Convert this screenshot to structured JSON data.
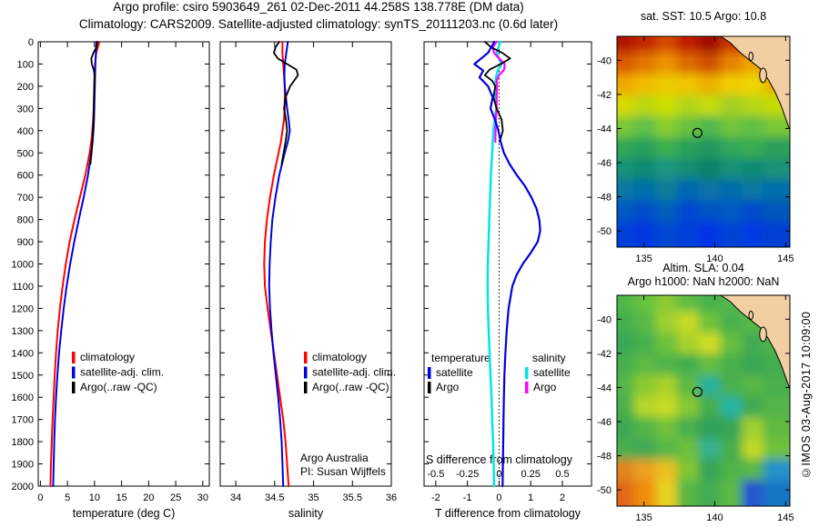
{
  "header": {
    "line1": "Argo profile: csiro 5903649_261 02-Dec-2011 44.258S 138.778E (DM data)",
    "line2": "Climatology: CARS2009. Satellite-adjusted climatology: synTS_20111203.nc (0.6d later)"
  },
  "watermark": "©IMOS 03-Aug-2017 10:09:00",
  "colors": {
    "climatology": "#ff0000",
    "satellite_adjusted": "#0000dd",
    "argo": "#000000",
    "salinity_satellite": "#00e5e5",
    "salinity_argo": "#ff00ff",
    "land": "#f2cfa2",
    "axis": "#000000"
  },
  "chart_data": [
    {
      "id": "temperature-profile",
      "type": "line",
      "xlabel": "temperature (deg C)",
      "xlim": [
        -0.4,
        31.2
      ],
      "xticks": [
        0,
        5,
        10,
        15,
        20,
        25,
        30
      ],
      "ylim": [
        0,
        2000
      ],
      "ytick_step": 100,
      "legend": [
        {
          "label": "climatology",
          "color": "#ff0000"
        },
        {
          "label": "satellite-adj. clim.",
          "color": "#0000dd"
        },
        {
          "label": "Argo(..raw -QC)",
          "color": "#000000"
        }
      ],
      "series": [
        {
          "slug": "climatology",
          "color": "#ff0000",
          "width": 2,
          "depth": [
            0,
            50,
            100,
            150,
            200,
            250,
            300,
            350,
            400,
            450,
            500,
            600,
            700,
            800,
            900,
            1000,
            1100,
            1200,
            1300,
            1400,
            1500,
            1600,
            1700,
            1800,
            1900,
            2000
          ],
          "values": [
            10.9,
            10.3,
            10.1,
            10.0,
            9.95,
            9.9,
            9.85,
            9.75,
            9.6,
            9.4,
            9.1,
            8.3,
            7.3,
            6.3,
            5.4,
            4.7,
            4.1,
            3.6,
            3.2,
            2.9,
            2.65,
            2.45,
            2.25,
            2.1,
            1.95,
            1.85
          ]
        },
        {
          "slug": "satellite-adj-clim",
          "color": "#0000dd",
          "width": 2,
          "depth": [
            0,
            50,
            100,
            150,
            200,
            250,
            300,
            350,
            400,
            450,
            500,
            600,
            700,
            800,
            900,
            1000,
            1100,
            1200,
            1300,
            1400,
            1500,
            1600,
            1700,
            1800,
            1900,
            2000
          ],
          "values": [
            10.35,
            10.25,
            10.15,
            10.1,
            10.05,
            10.0,
            9.95,
            9.9,
            9.8,
            9.65,
            9.4,
            8.8,
            8.0,
            7.1,
            6.25,
            5.5,
            4.85,
            4.3,
            3.85,
            3.45,
            3.15,
            2.9,
            2.7,
            2.55,
            2.45,
            2.35
          ]
        },
        {
          "slug": "argo-raw",
          "color": "#000000",
          "width": 1.8,
          "depth": [
            0,
            25,
            50,
            75,
            100,
            125,
            150,
            200,
            250,
            300,
            350,
            400,
            450,
            500,
            550
          ],
          "values": [
            10.55,
            10.35,
            9.8,
            9.4,
            9.5,
            9.85,
            10.0,
            9.95,
            9.9,
            9.85,
            9.8,
            9.7,
            9.6,
            9.45,
            9.25
          ]
        }
      ]
    },
    {
      "id": "salinity-profile",
      "type": "line",
      "xlabel": "salinity",
      "xlim": [
        33.8,
        36.0
      ],
      "xticks": [
        34,
        34.5,
        35,
        35.5,
        36
      ],
      "ylim": [
        0,
        2000
      ],
      "ytick_step": 100,
      "annotation": [
        "Argo Australia",
        "PI: Susan Wijffels"
      ],
      "legend": [
        {
          "label": "climatology",
          "color": "#ff0000"
        },
        {
          "label": "satellite-adj. clim.",
          "color": "#0000dd"
        },
        {
          "label": "Argo(..raw -QC)",
          "color": "#000000"
        }
      ],
      "series": [
        {
          "slug": "climatology",
          "color": "#ff0000",
          "width": 2,
          "depth": [
            0,
            50,
            100,
            150,
            200,
            250,
            300,
            350,
            400,
            450,
            500,
            600,
            700,
            800,
            900,
            1000,
            1100,
            1200,
            1300,
            1400,
            1500,
            1600,
            1700,
            1800,
            1900,
            2000
          ],
          "values": [
            34.6,
            34.6,
            34.61,
            34.62,
            34.63,
            34.63,
            34.63,
            34.62,
            34.6,
            34.58,
            34.55,
            34.49,
            34.44,
            34.4,
            34.375,
            34.365,
            34.375,
            34.41,
            34.45,
            34.49,
            34.53,
            34.57,
            34.61,
            34.64,
            34.66,
            34.68
          ]
        },
        {
          "slug": "satellite-adj-clim",
          "color": "#0000dd",
          "width": 2,
          "depth": [
            0,
            50,
            100,
            150,
            200,
            250,
            300,
            350,
            400,
            450,
            500,
            600,
            700,
            800,
            900,
            1000,
            1100,
            1200,
            1300,
            1400,
            1500,
            1600,
            1700,
            1800,
            1900,
            2000
          ],
          "values": [
            34.67,
            34.65,
            34.63,
            34.625,
            34.63,
            34.645,
            34.66,
            34.68,
            34.695,
            34.67,
            34.63,
            34.56,
            34.51,
            34.47,
            34.45,
            34.435,
            34.43,
            34.44,
            34.46,
            34.485,
            34.515,
            34.545,
            34.57,
            34.59,
            34.6,
            34.61
          ]
        },
        {
          "slug": "argo-raw",
          "color": "#000000",
          "width": 1.8,
          "depth": [
            0,
            25,
            50,
            75,
            100,
            125,
            150,
            200,
            250,
            300,
            350,
            400,
            450,
            500,
            550
          ],
          "values": [
            34.56,
            34.51,
            34.49,
            34.54,
            34.66,
            34.78,
            34.8,
            34.7,
            34.64,
            34.62,
            34.645,
            34.66,
            34.64,
            34.615,
            34.59
          ]
        }
      ]
    },
    {
      "id": "difference-panel",
      "type": "line",
      "xlabel": "T difference from climatology",
      "xlim": [
        -2.37,
        2.92
      ],
      "xticks": [
        -2,
        -1,
        0,
        1,
        2
      ],
      "s_axis_label": "S difference from climatology",
      "s_ticks": [
        -0.5,
        -0.25,
        0,
        0.25,
        0.5
      ],
      "ylim": [
        0,
        2000
      ],
      "legend_temperature": {
        "title": "temperature",
        "items": [
          {
            "label": "satellite",
            "color": "#0000dd"
          },
          {
            "label": "Argo",
            "color": "#000000"
          }
        ]
      },
      "legend_salinity": {
        "title": "salinity",
        "items": [
          {
            "label": "satellite",
            "color": "#00e5e5"
          },
          {
            "label": "Argo",
            "color": "#ff00ff"
          }
        ]
      },
      "series": [
        {
          "slug": "s-satellite-diff",
          "scale": "S",
          "color": "#00e5e5",
          "width": 2.5,
          "depth": [
            0,
            50,
            100,
            130,
            160,
            200,
            250,
            300,
            350,
            400,
            450,
            500,
            550,
            600,
            650,
            700,
            750,
            800,
            850,
            900,
            950,
            1000,
            1050,
            1100,
            1200,
            1300,
            1400,
            1500,
            1600,
            1700,
            1800,
            1900,
            2000
          ],
          "values": [
            0.01,
            -0.02,
            0.02,
            -0.01,
            -0.025,
            -0.03,
            -0.028,
            -0.022,
            -0.035,
            -0.045,
            -0.05,
            -0.055,
            -0.06,
            -0.065,
            -0.068,
            -0.071,
            -0.074,
            -0.077,
            -0.08,
            -0.083,
            -0.086,
            -0.089,
            -0.09,
            -0.09,
            -0.088,
            -0.082,
            -0.075,
            -0.068,
            -0.06,
            -0.054,
            -0.048,
            -0.043,
            -0.04
          ]
        },
        {
          "slug": "s-argo-diff",
          "scale": "S",
          "color": "#ff00ff",
          "width": 2.2,
          "depth": [
            0,
            25,
            50,
            75,
            100,
            125,
            150,
            175,
            200,
            250,
            300,
            350,
            400,
            450
          ],
          "values": [
            -0.02,
            -0.05,
            -0.04,
            0.0,
            0.045,
            0.04,
            0.0,
            -0.02,
            -0.015,
            -0.02,
            -0.02,
            -0.025,
            -0.028,
            -0.03
          ]
        },
        {
          "slug": "t-argo-diff",
          "scale": "T",
          "color": "#000000",
          "width": 1.8,
          "depth": [
            0,
            25,
            50,
            75,
            100,
            125,
            150,
            175,
            200,
            250,
            300,
            350,
            400,
            450
          ],
          "values": [
            -0.45,
            -0.25,
            0.1,
            0.35,
            0.05,
            -0.3,
            -0.45,
            -0.22,
            -0.12,
            -0.18,
            -0.08,
            0.08,
            0.12,
            0.02
          ]
        },
        {
          "slug": "t-satellite-diff",
          "scale": "T",
          "color": "#0000dd",
          "width": 2.2,
          "depth": [
            0,
            50,
            100,
            130,
            160,
            200,
            250,
            300,
            350,
            400,
            450,
            500,
            550,
            600,
            650,
            700,
            750,
            800,
            850,
            900,
            950,
            1000,
            1050,
            1100,
            1200,
            1300,
            1400,
            1500,
            1600,
            1700,
            1800,
            1900,
            2000
          ],
          "values": [
            -0.15,
            -0.35,
            -0.78,
            -0.5,
            -0.62,
            -0.35,
            -0.2,
            -0.27,
            -0.13,
            -0.02,
            0.05,
            0.15,
            0.33,
            0.56,
            0.82,
            1.02,
            1.18,
            1.27,
            1.3,
            1.22,
            1.0,
            0.75,
            0.55,
            0.42,
            0.3,
            0.24,
            0.2,
            0.17,
            0.15,
            0.14,
            0.13,
            0.12,
            0.11
          ]
        }
      ]
    },
    {
      "id": "sst-map",
      "type": "heatmap",
      "title": "sat. SST: 10.5 Argo: 10.8",
      "lon_ticks": [
        135,
        140,
        145
      ],
      "lat_ticks": [
        -40,
        -42,
        -44,
        -46,
        -48,
        -50
      ],
      "lon_range": [
        133.1,
        145.3
      ],
      "lat_range": [
        -38.6,
        -50.95
      ],
      "marker": {
        "lon": 138.778,
        "lat": -44.258
      },
      "land_poly": [
        [
          0.6,
          0
        ],
        [
          0.655,
          0.03
        ],
        [
          0.71,
          0.075
        ],
        [
          0.77,
          0.115
        ],
        [
          0.825,
          0.15
        ],
        [
          0.875,
          0.205
        ],
        [
          0.915,
          0.265
        ],
        [
          0.95,
          0.33
        ],
        [
          0.98,
          0.4
        ],
        [
          1,
          0.445
        ],
        [
          1,
          0
        ]
      ],
      "islands": [
        {
          "cx": 0.845,
          "cy": 0.185,
          "rx": 0.02,
          "ry": 0.034
        },
        {
          "cx": 0.775,
          "cy": 0.095,
          "rx": 0.012,
          "ry": 0.02
        }
      ],
      "grid": [
        [
          "#b01400",
          "#c42800",
          "#d44a00",
          "#c01c00",
          "#a20e00",
          "#ca3600",
          "#e06400",
          "#c22600"
        ],
        [
          "#d85800",
          "#e27400",
          "#ec9200",
          "#dc6a00",
          "#d05000",
          "#e68200",
          "#f0a400",
          "#da5e00"
        ],
        [
          "#f0a800",
          "#f2bc00",
          "#ecca00",
          "#f2c400",
          "#eab000",
          "#f2cc00",
          "#eed400",
          "#e8b600"
        ],
        [
          "#d8da00",
          "#bcd80e",
          "#ccdf04",
          "#b4d616",
          "#c4dc08",
          "#a4d022",
          "#b6d714",
          "#c6dc06"
        ],
        [
          "#7cc936",
          "#62c146",
          "#8ace2e",
          "#6ac33e",
          "#52b94e",
          "#72c53a",
          "#62c044",
          "#7ac836"
        ],
        [
          "#32a956",
          "#28a15c",
          "#3ab150",
          "#2ca35a",
          "#209960",
          "#30a958",
          "#3aad52",
          "#2aa15a"
        ],
        [
          "#189278",
          "#108a70",
          "#1c9680",
          "#148e74",
          "#0c8268",
          "#189278",
          "#108a74",
          "#1c9278"
        ],
        [
          "#0878a2",
          "#0070aa",
          "#107e9a",
          "#0068b2",
          "#0874a6",
          "#006cac",
          "#0878a2",
          "#0070aa"
        ],
        [
          "#0058c2",
          "#0050ca",
          "#0060ba",
          "#0048d2",
          "#0054c6",
          "#005cc2",
          "#004cca",
          "#0058ba"
        ],
        [
          "#0040da",
          "#0038e2",
          "#0048d2",
          "#0040da",
          "#0034e6",
          "#0044d6",
          "#003ce2",
          "#0040d2"
        ]
      ]
    },
    {
      "id": "sla-map",
      "type": "heatmap",
      "title": "Altim. SLA: 0.04",
      "subtitle": "Argo h1000: NaN h2000: NaN",
      "lon_ticks": [
        135,
        140,
        145
      ],
      "lat_ticks": [
        -40,
        -42,
        -44,
        -46,
        -48,
        -50
      ],
      "lon_range": [
        133.1,
        145.3
      ],
      "lat_range": [
        -38.6,
        -50.95
      ],
      "marker": {
        "lon": 138.778,
        "lat": -44.258
      },
      "land_poly": [
        [
          0.6,
          0
        ],
        [
          0.655,
          0.03
        ],
        [
          0.71,
          0.075
        ],
        [
          0.77,
          0.115
        ],
        [
          0.825,
          0.15
        ],
        [
          0.875,
          0.205
        ],
        [
          0.915,
          0.265
        ],
        [
          0.95,
          0.33
        ],
        [
          0.98,
          0.4
        ],
        [
          1,
          0.445
        ],
        [
          1,
          0
        ]
      ],
      "islands": [
        {
          "cx": 0.845,
          "cy": 0.185,
          "rx": 0.02,
          "ry": 0.034
        },
        {
          "cx": 0.775,
          "cy": 0.095,
          "rx": 0.012,
          "ry": 0.02
        }
      ],
      "grid": [
        [
          "#50b84a",
          "#68c23e",
          "#8cca34",
          "#60be44",
          "#4ab24e",
          "#54b84c",
          "#66c244",
          "#5ab847"
        ],
        [
          "#44b050",
          "#58ba46",
          "#9cd030",
          "#c8da26",
          "#70c23e",
          "#4ab04e",
          "#58b848",
          "#4cb24c"
        ],
        [
          "#3aa856",
          "#46b04e",
          "#70c23c",
          "#a8d22c",
          "#d0dc26",
          "#68be40",
          "#42ac52",
          "#50b44c"
        ],
        [
          "#46b04e",
          "#5cba44",
          "#50b44a",
          "#44ae50",
          "#66be40",
          "#4ab04c",
          "#3aa854",
          "#44ae50"
        ],
        [
          "#54b648",
          "#8cca32",
          "#a8d22c",
          "#60ba42",
          "#2cb09a",
          "#48b04e",
          "#58b846",
          "#4ab04e"
        ],
        [
          "#48b04e",
          "#b4d62a",
          "#c8da26",
          "#88c834",
          "#46ae50",
          "#28b4a4",
          "#40aa52",
          "#54b648"
        ],
        [
          "#3ca854",
          "#54b648",
          "#74c23a",
          "#48b04e",
          "#30a25a",
          "#38a656",
          "#a0d02e",
          "#60ba42"
        ],
        [
          "#46ae50",
          "#40aa52",
          "#58b846",
          "#6cc03c",
          "#38b090",
          "#44ae50",
          "#c0d828",
          "#70c23c"
        ],
        [
          "#e08820",
          "#eca020",
          "#e8c020",
          "#80c636",
          "#38a656",
          "#50b44a",
          "#58b846",
          "#2692c8"
        ],
        [
          "#e06818",
          "#f08c10",
          "#e8d020",
          "#58b846",
          "#42ac52",
          "#5cba44",
          "#2858d2",
          "#1878c4"
        ]
      ]
    }
  ]
}
